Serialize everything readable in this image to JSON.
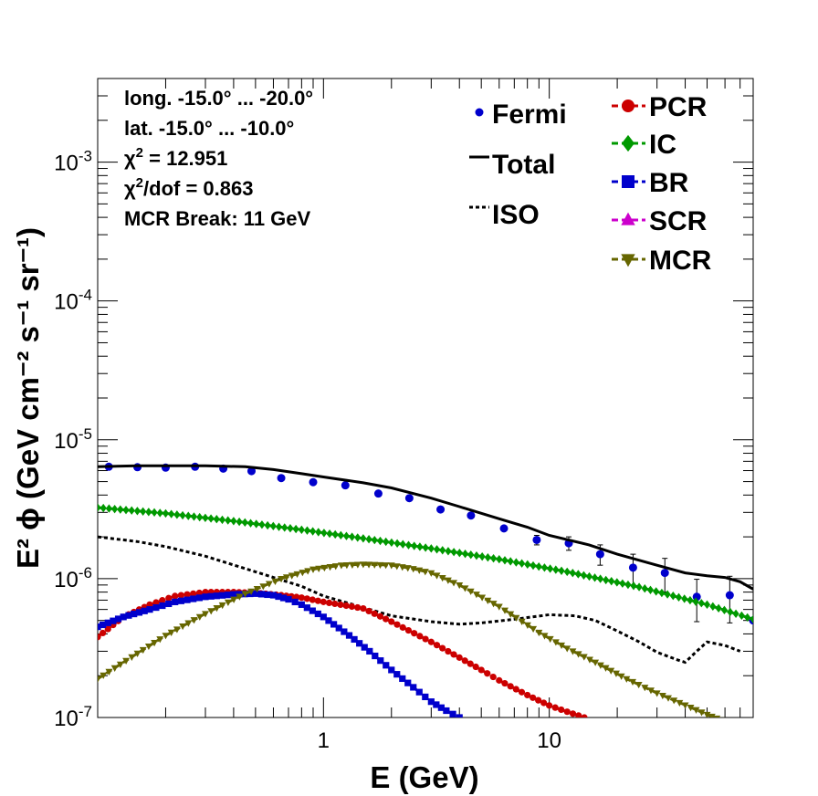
{
  "chart_data": {
    "type": "line",
    "xlabel": "E (GeV)",
    "ylabel": "E² ϕ (GeV cm⁻² s⁻¹ sr⁻¹)",
    "xscale": "log",
    "yscale": "log",
    "xlim": [
      0.1,
      80
    ],
    "ylim": [
      1e-07,
      0.004
    ],
    "x_ticks": [
      {
        "v": 1,
        "label": "1"
      },
      {
        "v": 10,
        "label": "10"
      }
    ],
    "y_ticks": [
      {
        "v": 1e-07,
        "mant": "10",
        "exp": "-7"
      },
      {
        "v": 1e-06,
        "mant": "10",
        "exp": "-6"
      },
      {
        "v": 1e-05,
        "mant": "10",
        "exp": "-5"
      },
      {
        "v": 0.0001,
        "mant": "10",
        "exp": "-4"
      },
      {
        "v": 0.001,
        "mant": "10",
        "exp": "-3"
      }
    ],
    "info_text": [
      "long. -15.0° ... -20.0°",
      "lat. -15.0° ... -10.0°",
      "χ² = 12.951",
      "χ²/dof = 0.863",
      "MCR Break: 11 GeV"
    ],
    "legend_left": [
      "Fermi",
      "Total",
      "ISO"
    ],
    "legend_right": [
      "PCR",
      "IC",
      "BR",
      "SCR",
      "MCR"
    ],
    "series": [
      {
        "name": "Fermi",
        "style": "points",
        "color": "#0000cc",
        "x": [
          0.112,
          0.15,
          0.2,
          0.27,
          0.36,
          0.48,
          0.65,
          0.9,
          1.25,
          1.75,
          2.4,
          3.3,
          4.5,
          6.3,
          8.8,
          12.2,
          16.8,
          23.5,
          32.5,
          45,
          63,
          80
        ],
        "y": [
          6.4e-06,
          6.35e-06,
          6.3e-06,
          6.4e-06,
          6.2e-06,
          5.95e-06,
          5.3e-06,
          4.95e-06,
          4.7e-06,
          4.1e-06,
          3.8e-06,
          3.15e-06,
          2.85e-06,
          2.3e-06,
          1.9e-06,
          1.8e-06,
          1.5e-06,
          1.2e-06,
          1.1e-06,
          7.4e-07,
          7.6e-07,
          5e-07
        ],
        "yerr_lo": [
          0,
          0,
          0,
          0,
          0,
          0,
          0,
          0,
          0,
          0,
          0,
          0,
          0,
          0,
          1.5e-07,
          2e-07,
          2.5e-07,
          3e-07,
          3e-07,
          2.5e-07,
          2.8e-07,
          0
        ],
        "yerr_hi": [
          0,
          0,
          0,
          0,
          0,
          0,
          0,
          0,
          0,
          0,
          0,
          0,
          0,
          0,
          1.5e-07,
          2e-07,
          2.5e-07,
          3e-07,
          3e-07,
          2.5e-07,
          2.8e-07,
          0
        ]
      },
      {
        "name": "Total",
        "style": "solid",
        "color": "#000000",
        "x": [
          0.1,
          0.15,
          0.2,
          0.3,
          0.45,
          0.6,
          0.8,
          1.0,
          1.5,
          2,
          3,
          4,
          6,
          8,
          10,
          15,
          20,
          30,
          40,
          50,
          60,
          70,
          80
        ],
        "y": [
          6.4e-06,
          6.5e-06,
          6.5e-06,
          6.5e-06,
          6.4e-06,
          6.1e-06,
          5.7e-06,
          5.4e-06,
          4.9e-06,
          4.5e-06,
          3.8e-06,
          3.3e-06,
          2.7e-06,
          2.35e-06,
          2.05e-06,
          1.75e-06,
          1.5e-06,
          1.25e-06,
          1.1e-06,
          1.05e-06,
          1.02e-06,
          9.5e-07,
          8.4e-07
        ]
      },
      {
        "name": "ISO",
        "style": "dotted",
        "color": "#000000",
        "x": [
          0.1,
          0.15,
          0.2,
          0.3,
          0.5,
          0.8,
          1.0,
          1.5,
          2,
          3,
          4,
          5,
          7,
          10,
          13,
          16,
          20,
          25,
          30,
          37,
          40,
          45,
          50,
          60,
          70
        ],
        "y": [
          2e-06,
          1.85e-06,
          1.7e-06,
          1.45e-06,
          1.12e-06,
          8.8e-07,
          7.5e-07,
          6.2e-07,
          5.4e-07,
          4.9e-07,
          4.7e-07,
          4.8e-07,
          5.1e-07,
          5.5e-07,
          5.4e-07,
          5e-07,
          4.2e-07,
          3.5e-07,
          2.95e-07,
          2.6e-07,
          2.5e-07,
          3e-07,
          3.5e-07,
          3.3e-07,
          3e-07
        ]
      },
      {
        "name": "PCR",
        "style": "dashed",
        "marker": "circle",
        "color": "#cc0000",
        "x": [
          0.1,
          0.13,
          0.17,
          0.22,
          0.3,
          0.4,
          0.5,
          0.65,
          0.8,
          1.0,
          1.5,
          2,
          3,
          4,
          5,
          6,
          8,
          10,
          12,
          14.3
        ],
        "y": [
          3.8e-07,
          5.3e-07,
          6.5e-07,
          7.5e-07,
          8e-07,
          8e-07,
          7.9e-07,
          7.6e-07,
          7.3e-07,
          6.8e-07,
          6.1e-07,
          4.9e-07,
          3.5e-07,
          2.7e-07,
          2.2e-07,
          1.85e-07,
          1.45e-07,
          1.22e-07,
          1.1e-07,
          1e-07
        ]
      },
      {
        "name": "IC",
        "style": "dashed",
        "marker": "diamond",
        "color": "#009900",
        "x": [
          0.1,
          0.2,
          0.4,
          0.8,
          1.5,
          3,
          6,
          12,
          25,
          50,
          80
        ],
        "y": [
          3.25e-06,
          2.95e-06,
          2.6e-06,
          2.25e-06,
          1.95e-06,
          1.65e-06,
          1.38e-06,
          1.12e-06,
          8.7e-07,
          6.5e-07,
          5.1e-07
        ]
      },
      {
        "name": "BR",
        "style": "dashed",
        "marker": "square",
        "color": "#0000cc",
        "x": [
          0.1,
          0.13,
          0.17,
          0.22,
          0.3,
          0.4,
          0.5,
          0.6,
          0.7,
          0.8,
          1.0,
          1.3,
          1.6,
          2.0,
          2.5,
          3.0,
          3.5,
          4.0
        ],
        "y": [
          4.5e-07,
          5.3e-07,
          6e-07,
          6.8e-07,
          7.4e-07,
          7.7e-07,
          7.8e-07,
          7.6e-07,
          7.1e-07,
          6.5e-07,
          5.3e-07,
          3.9e-07,
          3e-07,
          2.2e-07,
          1.65e-07,
          1.3e-07,
          1.12e-07,
          1e-07
        ]
      },
      {
        "name": "SCR",
        "style": "dashed",
        "marker": "triangle-up",
        "color": "#cc00cc",
        "x": [],
        "y": []
      },
      {
        "name": "MCR",
        "style": "dashed",
        "marker": "triangle-down",
        "color": "#666600",
        "x": [
          0.1,
          0.15,
          0.2,
          0.3,
          0.45,
          0.65,
          0.9,
          1.2,
          1.5,
          2,
          2.5,
          3,
          4,
          6,
          9,
          12,
          16,
          22,
          30,
          40,
          50,
          58
        ],
        "y": [
          1.9e-07,
          2.9e-07,
          3.9e-07,
          5.6e-07,
          7.8e-07,
          1e-06,
          1.17e-06,
          1.25e-06,
          1.27e-06,
          1.25e-06,
          1.18e-06,
          1.1e-06,
          9e-07,
          6.3e-07,
          4.1e-07,
          3.15e-07,
          2.5e-07,
          1.9e-07,
          1.5e-07,
          1.23e-07,
          1.05e-07,
          9.6e-08
        ]
      }
    ]
  }
}
